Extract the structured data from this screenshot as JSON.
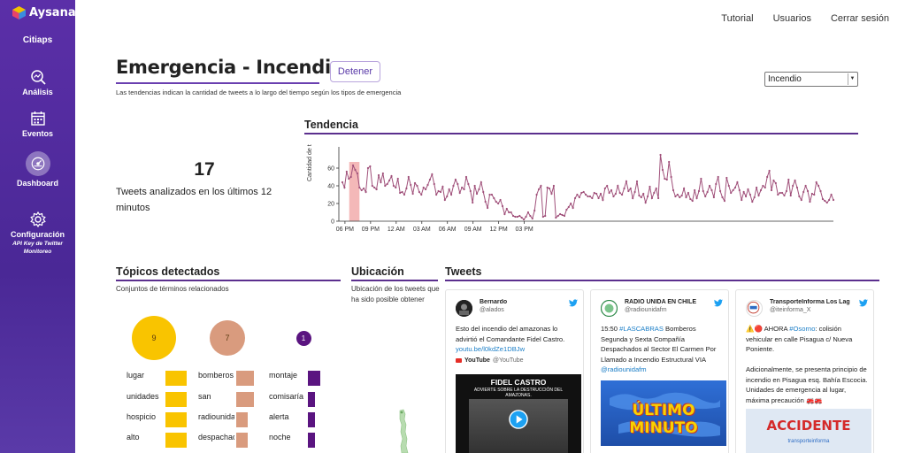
{
  "brand": {
    "name": "Aysana",
    "org": "Citiaps"
  },
  "sidebar": {
    "items": [
      {
        "label": "Análisis",
        "icon": "search-chart-icon"
      },
      {
        "label": "Eventos",
        "icon": "calendar-icon"
      },
      {
        "label": "Dashboard",
        "icon": "dashboard-icon",
        "active": true
      },
      {
        "label": "Configuración",
        "icon": "gear-icon",
        "sub": "API Key de Twitter Monitoreo"
      }
    ]
  },
  "topnav": {
    "tutorial": "Tutorial",
    "users": "Usuarios",
    "logout": "Cerrar sesión"
  },
  "header": {
    "title": "Emergencia - Incendio",
    "stop_label": "Detener",
    "subtitle": "Las tendencias indican la cantidad de tweets a lo largo del tiempo según los tipos de emergencia",
    "filter_value": "Incendio"
  },
  "stats": {
    "count": "17",
    "label": "Tweets analizados en los últimos 12 minutos"
  },
  "trend": {
    "title": "Tendencia",
    "colors": {
      "line": "#a0507a",
      "highlight": "#f4b8b8"
    }
  },
  "chart_data": {
    "type": "line",
    "title": "Tendencia",
    "ylabel": "Cantidad de t",
    "xlabel": "",
    "ylim": [
      0,
      80
    ],
    "y_ticks": [
      "0",
      "20",
      "40",
      "60"
    ],
    "x_ticks": [
      "06 PM",
      "09 PM",
      "12 AM",
      "03 AM",
      "06 AM",
      "09 AM",
      "12 PM",
      "03 PM"
    ],
    "highlight_range_hours": [
      0.5,
      1.7
    ],
    "step_hours": 0.25,
    "values": [
      44,
      38,
      56,
      48,
      50,
      63,
      58,
      54,
      38,
      35,
      37,
      33,
      60,
      62,
      40,
      38,
      36,
      52,
      44,
      54,
      40,
      42,
      46,
      51,
      40,
      38,
      48,
      32,
      33,
      30,
      37,
      50,
      41,
      31,
      43,
      40,
      33,
      30,
      38,
      36,
      41,
      47,
      53,
      42,
      30,
      34,
      33,
      39,
      24,
      28,
      36,
      30,
      40,
      47,
      42,
      32,
      38,
      36,
      50,
      42,
      34,
      21,
      40,
      31,
      36,
      44,
      33,
      22,
      15,
      30,
      30,
      26,
      22,
      20,
      24,
      17,
      8,
      14,
      10,
      10,
      6,
      5,
      5,
      6,
      4,
      2,
      5,
      10,
      6,
      3,
      12,
      30,
      36,
      40,
      5,
      6,
      38,
      37,
      31,
      40,
      4,
      6,
      8,
      7,
      6,
      13,
      16,
      20,
      15,
      26,
      30,
      27,
      32,
      33,
      30,
      28,
      28,
      26,
      32,
      31,
      26,
      31,
      24,
      37,
      40,
      32,
      35,
      28,
      31,
      40,
      32,
      30,
      37,
      45,
      34,
      37,
      26,
      33,
      45,
      29,
      27,
      31,
      21,
      28,
      39,
      26,
      32,
      37,
      26,
      75,
      58,
      48,
      47,
      67,
      50,
      35,
      28,
      30,
      27,
      29,
      37,
      27,
      32,
      25,
      23,
      35,
      26,
      34,
      48,
      34,
      28,
      33,
      40,
      35,
      27,
      42,
      50,
      34,
      27,
      23,
      49,
      40,
      32,
      35,
      38,
      44,
      35,
      24,
      33,
      28,
      36,
      30,
      22,
      27,
      38,
      29,
      35,
      40,
      38,
      50,
      57,
      35,
      46,
      43,
      30,
      32,
      32,
      29,
      34,
      47,
      29,
      40,
      46,
      38,
      28,
      24,
      33,
      40,
      34,
      22,
      31,
      30,
      44,
      40,
      34,
      25,
      23,
      21,
      24,
      30,
      24
    ]
  },
  "topics": {
    "title": "Tópicos detectados",
    "desc": "Conjuntos de términos relacionados",
    "clusters": [
      {
        "count": "9",
        "color": "#f9c400",
        "terms": [
          {
            "label": "lugar",
            "value": 1.0
          },
          {
            "label": "unidades",
            "value": 1.0
          },
          {
            "label": "hospicio",
            "value": 1.0
          },
          {
            "label": "alto",
            "value": 1.0
          }
        ]
      },
      {
        "count": "7",
        "color": "#d99b7e",
        "terms": [
          {
            "label": "bomberos",
            "value": 0.85
          },
          {
            "label": "san",
            "value": 0.85
          },
          {
            "label": "radiounida",
            "value": 0.55
          },
          {
            "label": "despachad",
            "value": 0.55
          }
        ]
      },
      {
        "count": "1",
        "color": "#5a1480",
        "terms": [
          {
            "label": "montaje",
            "value": 0.6
          },
          {
            "label": "comisaría",
            "value": 0.35
          },
          {
            "label": "alerta",
            "value": 0.35
          },
          {
            "label": "noche",
            "value": 0.35
          }
        ]
      }
    ]
  },
  "location": {
    "title": "Ubicación",
    "desc": "Ubicación de los tweets que ha sido posible obtener"
  },
  "tweets": {
    "title": "Tweets",
    "items": [
      {
        "name": "Bernardo",
        "handle": "@alados",
        "text": "Esto del incendio del amazonas lo advirtió el Comandante Fidel Castro.",
        "link": "youtu.be/l0kdZe1DBJw",
        "source": "YouTube",
        "source_handle": "@YouTube",
        "media_title": "FIDEL CASTRO",
        "media_sub": "ADVIERTE SOBRE LA DESTRUCCIÓN DEL AMAZONAS."
      },
      {
        "name": "RADIO UNIDA EN CHILE",
        "handle": "@radiounidafm",
        "text_pre": "15:50 ",
        "hashtag": "#LASCABRAS",
        "text": " Bomberos Segunda y Sexta Compañía Despachados al Sector El Carmen Por Llamado a Incendio Estructural VIA ",
        "mention": "@radiounidafm",
        "media_title": "ÚLTIMO MINUTO"
      },
      {
        "name": "TransporteInforma Los Lag",
        "handle": "@iteinforma_X",
        "text_pre": "⚠️🔴 AHORA ",
        "hashtag": "#Osorno",
        "text": ": colisión vehicular en calle Pisagua c/ Nueva Poniente.",
        "text2": "Adicionalmente, se presenta principio de incendio en Pisagua esq. Bahía Escocia. Unidades de emergencia al lugar, máxima precaución 🚒🚒",
        "media_title": "ACCIDENTE",
        "media_sub": "transporteinforma"
      }
    ]
  }
}
